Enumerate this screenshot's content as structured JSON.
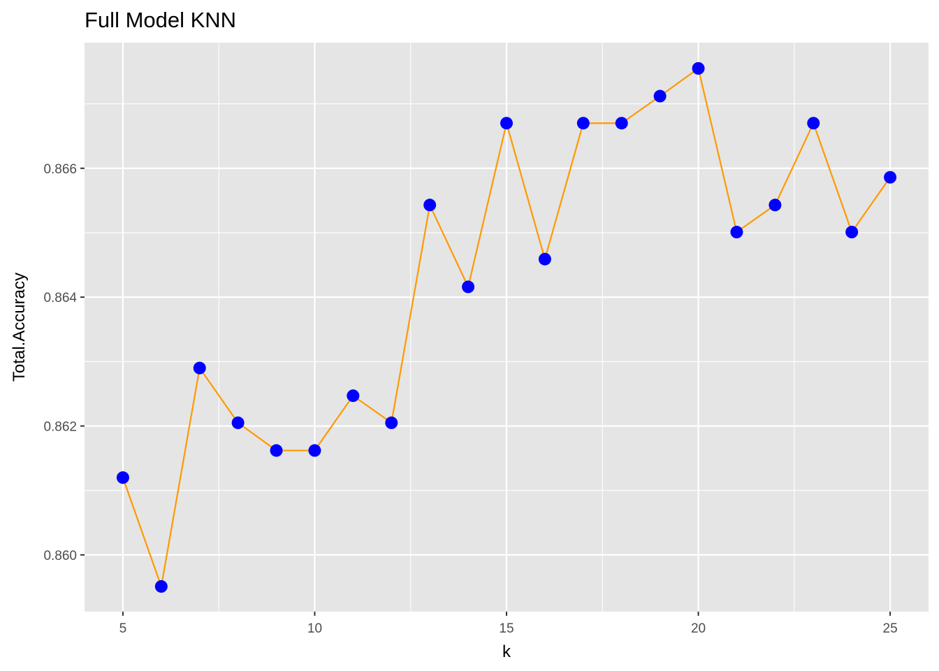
{
  "chart_data": {
    "type": "line",
    "title": "Full Model KNN",
    "xlabel": "k",
    "ylabel": "Total.Accuracy",
    "x": [
      5,
      6,
      7,
      8,
      9,
      10,
      11,
      12,
      13,
      14,
      15,
      16,
      17,
      18,
      19,
      20,
      21,
      22,
      23,
      24,
      25
    ],
    "series": [
      {
        "values": [
          0.8612,
          0.85951,
          0.8629,
          0.86205,
          0.86162,
          0.86162,
          0.86247,
          0.86205,
          0.86543,
          0.86416,
          0.8667,
          0.86459,
          0.8667,
          0.8667,
          0.86712,
          0.86755,
          0.86501,
          0.86543,
          0.8667,
          0.86501,
          0.86586
        ],
        "line_color": "#ff9900",
        "point_color": "#0000ff"
      }
    ],
    "xlim": [
      4.0,
      26.0
    ],
    "ylim": [
      0.85912,
      0.86795
    ],
    "x_ticks": [
      5,
      10,
      15,
      20,
      25
    ],
    "x_tick_labels": [
      "5",
      "10",
      "15",
      "20",
      "25"
    ],
    "y_ticks": [
      0.86,
      0.862,
      0.864,
      0.866
    ],
    "y_tick_labels": [
      "0.860",
      "0.862",
      "0.864",
      "0.866"
    ],
    "grid": true,
    "panel_background": "#e5e5e5",
    "grid_color": "#ffffff"
  }
}
